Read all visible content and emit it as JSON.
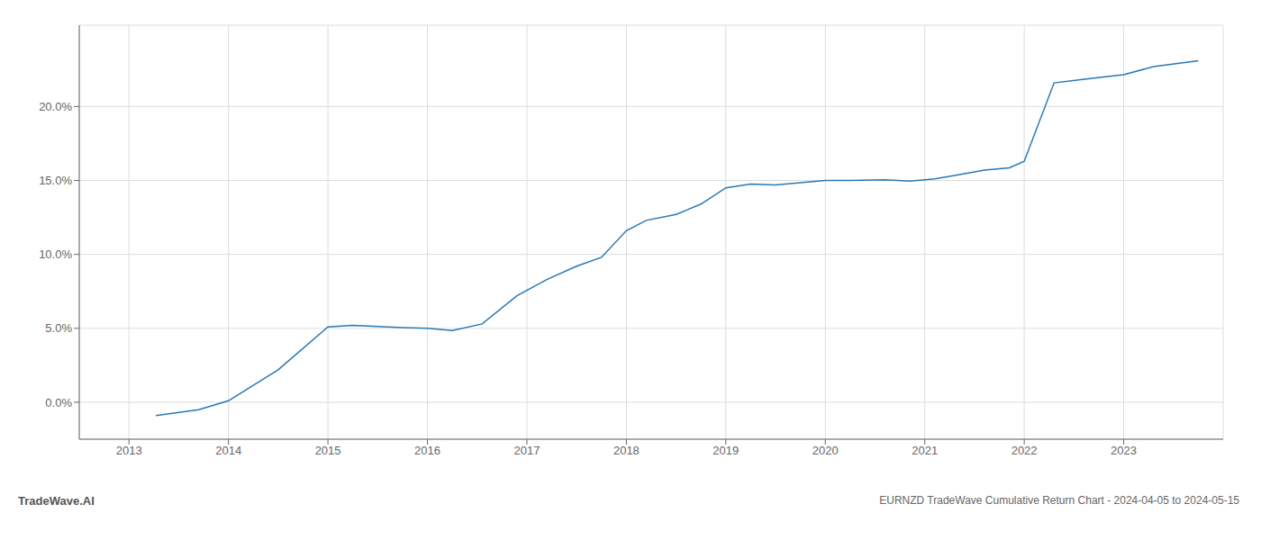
{
  "chart_data": {
    "type": "line",
    "title": "EURNZD TradeWave Cumulative Return Chart - 2024-04-05 to 2024-05-15",
    "annotations": [
      "TradeWave.AI"
    ],
    "x": [
      2013.27,
      2013.7,
      2014.0,
      2014.5,
      2015.0,
      2015.25,
      2015.75,
      2016.0,
      2016.25,
      2016.55,
      2016.9,
      2017.2,
      2017.5,
      2017.75,
      2018.0,
      2018.2,
      2018.5,
      2018.75,
      2019.0,
      2019.25,
      2019.5,
      2019.75,
      2020.0,
      2020.25,
      2020.6,
      2020.85,
      2021.1,
      2021.35,
      2021.6,
      2021.85,
      2022.0,
      2022.3,
      2022.55,
      2022.8,
      2023.0,
      2023.3,
      2023.75
    ],
    "values": [
      -0.9,
      -0.5,
      0.1,
      2.2,
      5.1,
      5.2,
      5.05,
      5.0,
      4.85,
      5.3,
      7.2,
      8.3,
      9.2,
      9.8,
      11.6,
      12.3,
      12.7,
      13.4,
      14.5,
      14.75,
      14.7,
      14.85,
      15.0,
      15.0,
      15.05,
      14.95,
      15.1,
      15.4,
      15.7,
      15.85,
      16.3,
      21.6,
      21.8,
      22.0,
      22.15,
      22.7,
      23.1
    ],
    "color": "#2878b5",
    "xlim": [
      2012.5,
      2024.0
    ],
    "ylim": [
      -2.5,
      25.5
    ],
    "xticks": [
      2013,
      2014,
      2015,
      2016,
      2017,
      2018,
      2019,
      2020,
      2021,
      2022,
      2023
    ],
    "yticks": [
      {
        "value": 0.0,
        "label": "0.0%"
      },
      {
        "value": 5.0,
        "label": "5.0%"
      },
      {
        "value": 10.0,
        "label": "10.0%"
      },
      {
        "value": 15.0,
        "label": "15.0%"
      },
      {
        "value": 20.0,
        "label": "20.0%"
      }
    ],
    "grid": true
  }
}
